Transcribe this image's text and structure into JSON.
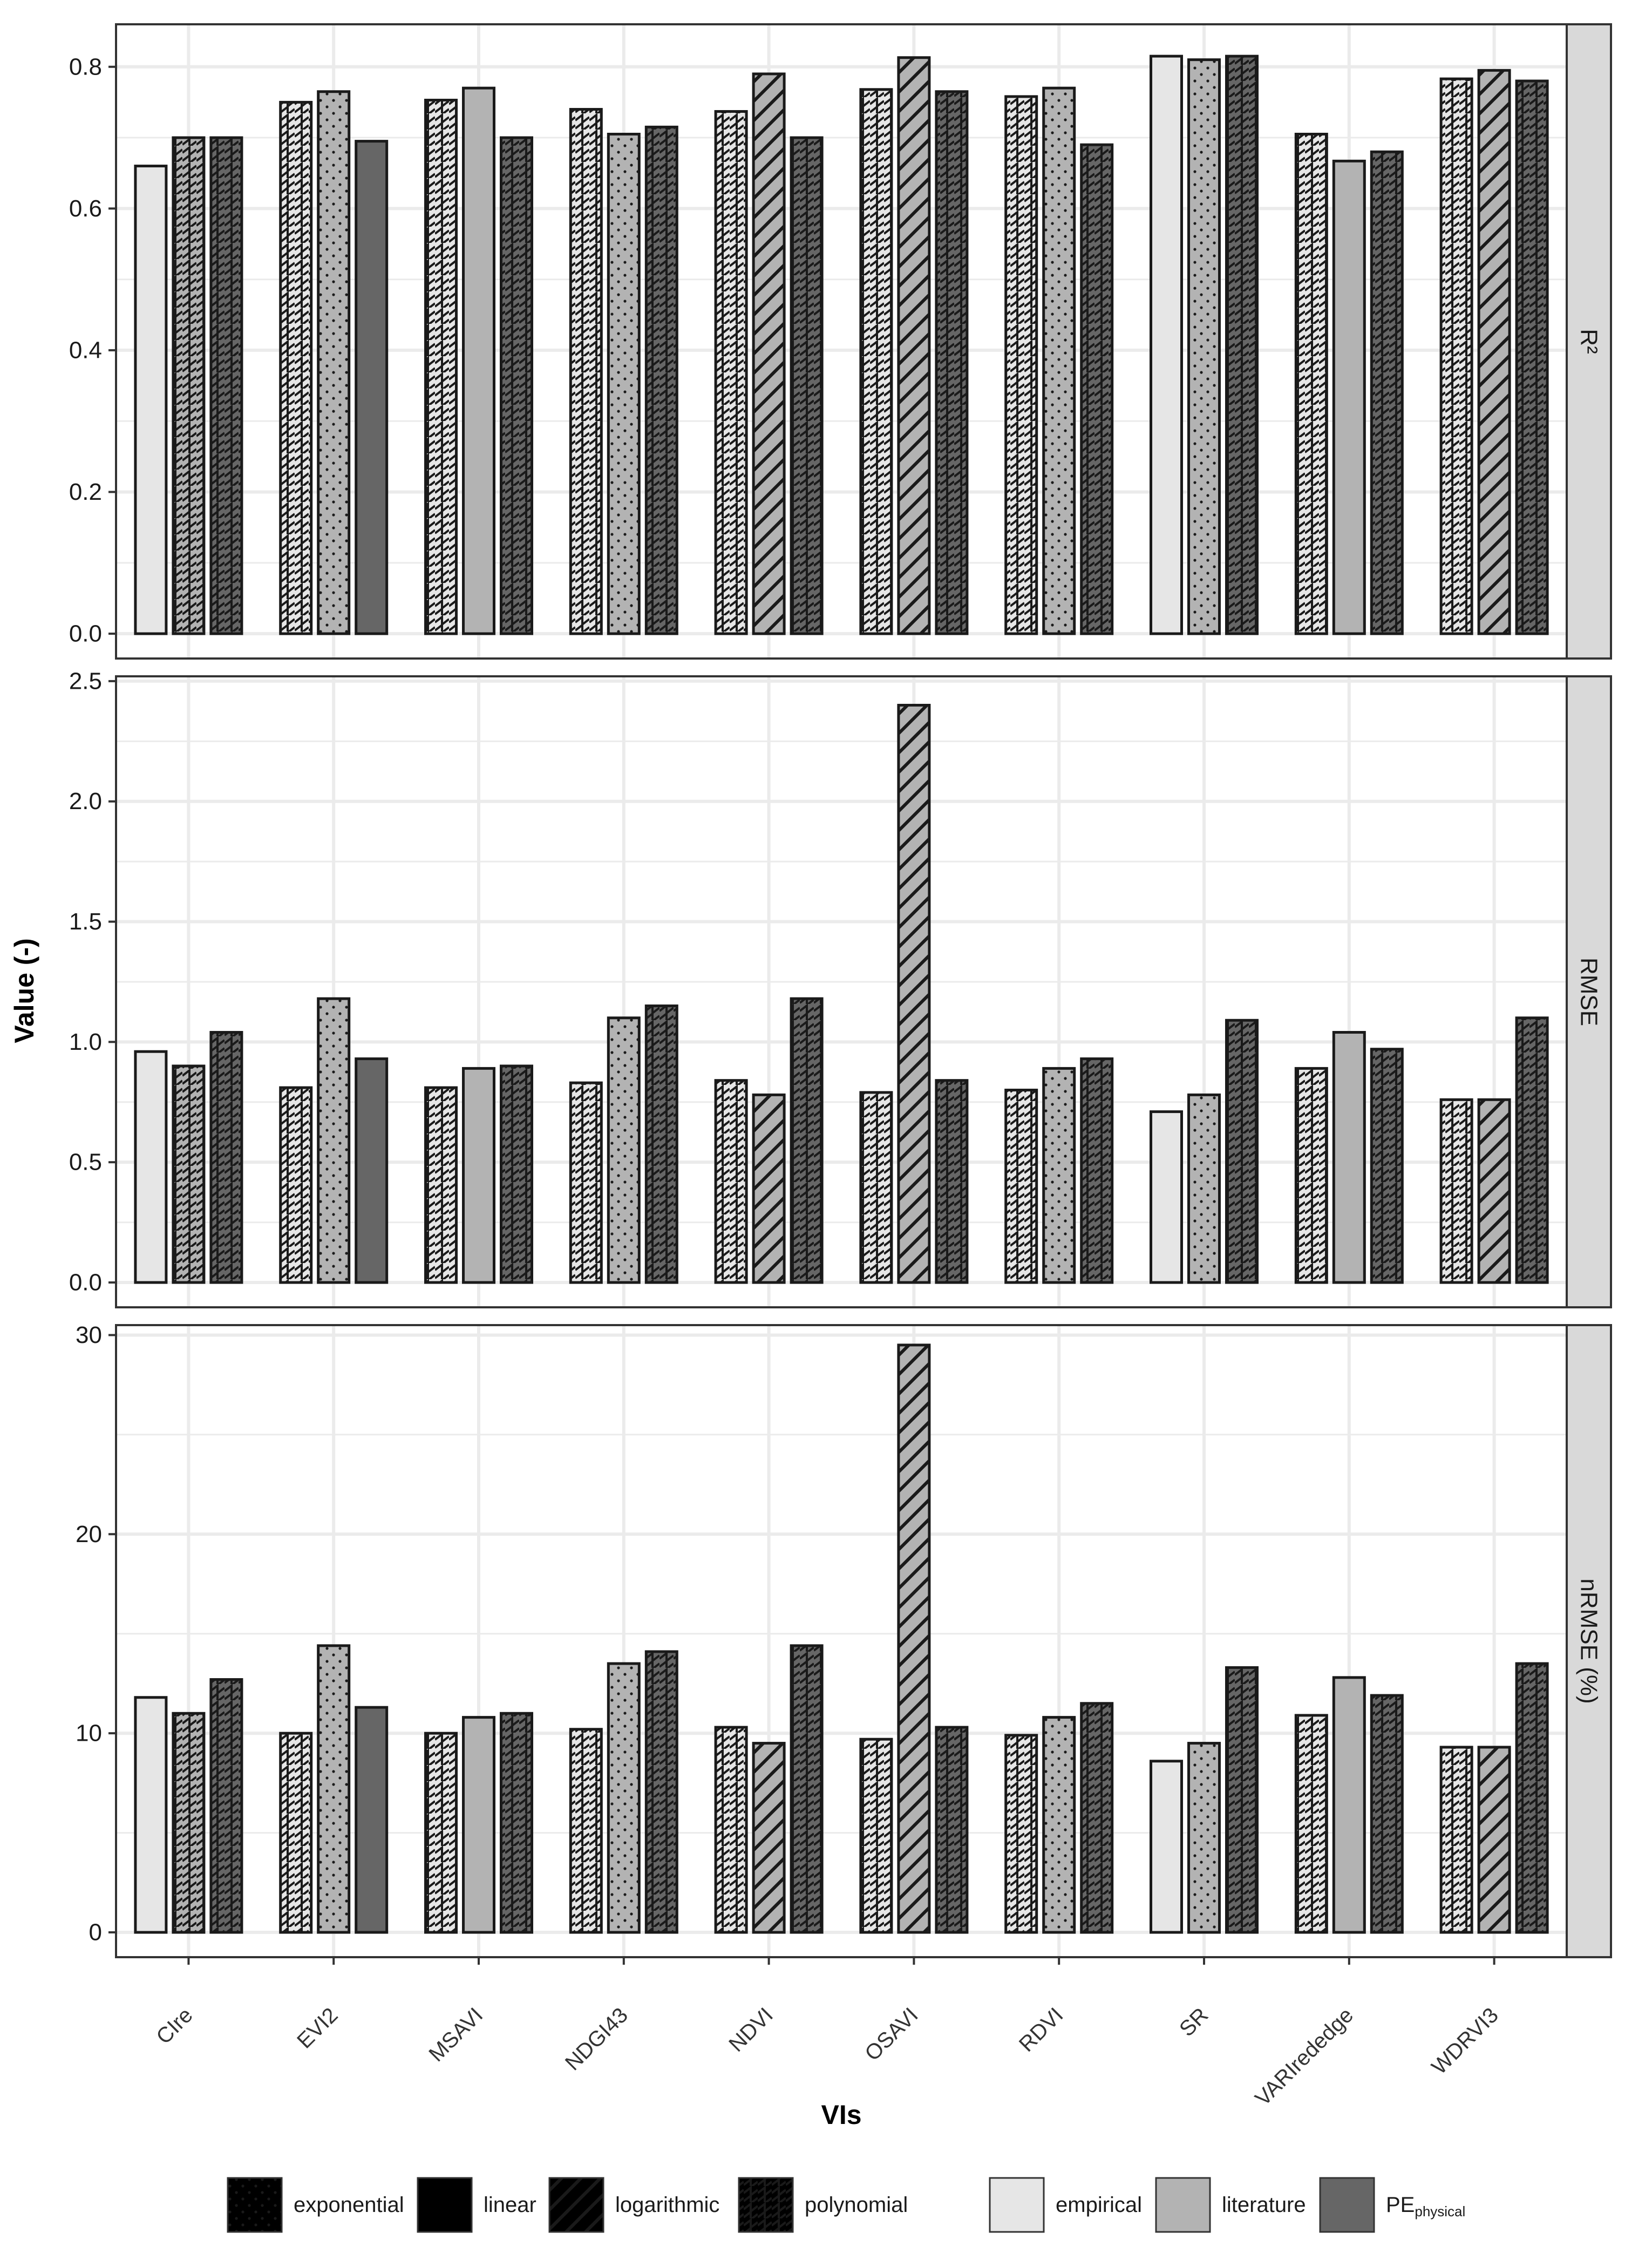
{
  "chart_data": {
    "type": "bar",
    "title": "",
    "xlabel": "VIs",
    "ylabel": "Value (-)",
    "categories": [
      "CIre",
      "EVI2",
      "MSAVI",
      "NDGI43",
      "NDVI",
      "OSAVI",
      "RDVI",
      "SR",
      "VARIrededge",
      "WDRVI3"
    ],
    "grid": true,
    "panels": [
      {
        "strip": "R²",
        "ylim": [
          0,
          0.86
        ],
        "yticks": [
          0.0,
          0.2,
          0.4,
          0.6,
          0.8
        ],
        "tick_labels": [
          "0.0",
          "0.2",
          "0.4",
          "0.6",
          "0.8"
        ]
      },
      {
        "strip": "RMSE",
        "ylim": [
          0,
          2.52
        ],
        "yticks": [
          0.0,
          0.5,
          1.0,
          1.5,
          2.0,
          2.5
        ],
        "tick_labels": [
          "0.0",
          "0.5",
          "1.0",
          "1.5",
          "2.0",
          "2.5"
        ]
      },
      {
        "strip": "nRMSE (%)",
        "ylim": [
          0,
          30.5
        ],
        "yticks": [
          0,
          10,
          20,
          30
        ],
        "tick_labels": [
          "0",
          "10",
          "20",
          "30"
        ]
      }
    ],
    "bars": [
      [
        {
          "source": "empirical",
          "model": "linear",
          "values": [
            0.66,
            0.96,
            11.8
          ]
        },
        {
          "source": "literature",
          "model": "polynomial",
          "values": [
            0.7,
            0.9,
            11.0
          ]
        },
        {
          "source": "PEphysical",
          "model": "polynomial",
          "values": [
            0.7,
            1.04,
            12.7
          ]
        }
      ],
      [
        {
          "source": "empirical",
          "model": "polynomial",
          "values": [
            0.75,
            0.81,
            10.0
          ]
        },
        {
          "source": "literature",
          "model": "exponential",
          "values": [
            0.765,
            1.18,
            14.4
          ]
        },
        {
          "source": "PEphysical",
          "model": "linear",
          "values": [
            0.695,
            0.93,
            11.3
          ]
        }
      ],
      [
        {
          "source": "empirical",
          "model": "polynomial",
          "values": [
            0.753,
            0.81,
            10.0
          ]
        },
        {
          "source": "literature",
          "model": "linear",
          "values": [
            0.77,
            0.89,
            10.8
          ]
        },
        {
          "source": "PEphysical",
          "model": "polynomial",
          "values": [
            0.7,
            0.9,
            11.0
          ]
        }
      ],
      [
        {
          "source": "empirical",
          "model": "polynomial",
          "values": [
            0.74,
            0.83,
            10.2
          ]
        },
        {
          "source": "literature",
          "model": "exponential",
          "values": [
            0.705,
            1.1,
            13.5
          ]
        },
        {
          "source": "PEphysical",
          "model": "polynomial",
          "values": [
            0.715,
            1.15,
            14.1
          ]
        }
      ],
      [
        {
          "source": "empirical",
          "model": "polynomial",
          "values": [
            0.737,
            0.84,
            10.3
          ]
        },
        {
          "source": "literature",
          "model": "logarithmic",
          "values": [
            0.79,
            0.78,
            9.5
          ]
        },
        {
          "source": "PEphysical",
          "model": "polynomial",
          "values": [
            0.7,
            1.18,
            14.4
          ]
        }
      ],
      [
        {
          "source": "empirical",
          "model": "polynomial",
          "values": [
            0.768,
            0.79,
            9.7
          ]
        },
        {
          "source": "literature",
          "model": "logarithmic",
          "values": [
            0.813,
            2.4,
            29.5
          ]
        },
        {
          "source": "PEphysical",
          "model": "polynomial",
          "values": [
            0.765,
            0.84,
            10.3
          ]
        }
      ],
      [
        {
          "source": "empirical",
          "model": "polynomial",
          "values": [
            0.758,
            0.8,
            9.9
          ]
        },
        {
          "source": "literature",
          "model": "exponential",
          "values": [
            0.77,
            0.89,
            10.8
          ]
        },
        {
          "source": "PEphysical",
          "model": "polynomial",
          "values": [
            0.69,
            0.93,
            11.5
          ]
        }
      ],
      [
        {
          "source": "empirical",
          "model": "linear",
          "values": [
            0.815,
            0.71,
            8.6
          ]
        },
        {
          "source": "literature",
          "model": "exponential",
          "values": [
            0.81,
            0.78,
            9.5
          ]
        },
        {
          "source": "PEphysical",
          "model": "polynomial",
          "values": [
            0.815,
            1.09,
            13.3
          ]
        }
      ],
      [
        {
          "source": "empirical",
          "model": "polynomial",
          "values": [
            0.705,
            0.89,
            10.9
          ]
        },
        {
          "source": "literature",
          "model": "linear",
          "values": [
            0.667,
            1.04,
            12.8
          ]
        },
        {
          "source": "PEphysical",
          "model": "polynomial",
          "values": [
            0.68,
            0.97,
            11.9
          ]
        }
      ],
      [
        {
          "source": "empirical",
          "model": "polynomial",
          "values": [
            0.783,
            0.76,
            9.3
          ]
        },
        {
          "source": "literature",
          "model": "logarithmic",
          "values": [
            0.795,
            0.76,
            9.3
          ]
        },
        {
          "source": "PEphysical",
          "model": "polynomial",
          "values": [
            0.78,
            1.1,
            13.5
          ]
        }
      ]
    ],
    "legend_position": "bottom",
    "legend": {
      "model_items": [
        "exponential",
        "linear",
        "logarithmic",
        "polynomial"
      ],
      "source_items": [
        {
          "key": "empirical",
          "label": "empirical"
        },
        {
          "key": "literature",
          "label": "literature"
        },
        {
          "key": "PEphysical",
          "label": "PE",
          "sub": "physical"
        }
      ]
    }
  },
  "colors": {
    "empirical": "#e6e6e6",
    "literature": "#b3b3b3",
    "PEphysical": "#666666",
    "bar_outline": "#1a1a1a",
    "grid": "#ebebeb",
    "strip": "#d9d9d9",
    "panel_border": "#333333"
  }
}
